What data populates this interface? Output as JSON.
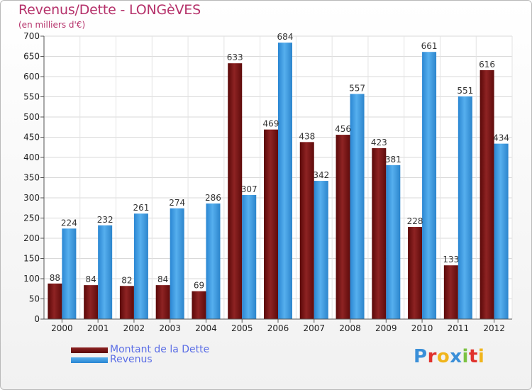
{
  "header": {
    "title": "Revenus/Dette - LONGèVES",
    "subtitle": "(en milliers d'€)"
  },
  "logo": {
    "text": "Proxiti",
    "letters": [
      {
        "ch": "P",
        "color": "#3a8fd8"
      },
      {
        "ch": "r",
        "color": "#e0312c"
      },
      {
        "ch": "o",
        "color": "#f0b51c"
      },
      {
        "ch": "x",
        "color": "#3a8fd8"
      },
      {
        "ch": "i",
        "color": "#7bc242"
      },
      {
        "ch": "t",
        "color": "#e0312c"
      },
      {
        "ch": "i",
        "color": "#f0b51c"
      }
    ]
  },
  "colors": {
    "dette": "#7a1414",
    "revenus": "#2f8fd8",
    "axis_text": "#222222",
    "label_text": "#333333"
  },
  "chart_data": {
    "type": "bar",
    "title": "Revenus/Dette - LONGèVES",
    "ylabel": "(en milliers d'€)",
    "ylim": [
      0,
      700
    ],
    "yticks": [
      0,
      50,
      100,
      150,
      200,
      250,
      300,
      350,
      400,
      450,
      500,
      550,
      600,
      650,
      700
    ],
    "grid": true,
    "legend_position": "bottom-left",
    "categories": [
      "2000",
      "2001",
      "2002",
      "2003",
      "2004",
      "2005",
      "2006",
      "2007",
      "2008",
      "2009",
      "2010",
      "2011",
      "2012"
    ],
    "series": [
      {
        "name": "Montant de la Dette",
        "values": [
          88,
          84,
          82,
          84,
          69,
          633,
          469,
          438,
          456,
          423,
          228,
          133,
          616
        ]
      },
      {
        "name": "Revenus",
        "values": [
          224,
          232,
          261,
          274,
          286,
          307,
          684,
          342,
          557,
          381,
          661,
          551,
          434
        ]
      }
    ]
  }
}
